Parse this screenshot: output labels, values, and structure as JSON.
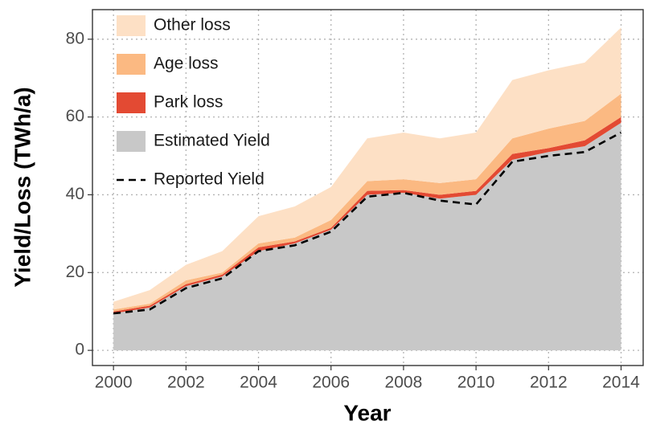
{
  "chart_data": {
    "type": "stacked-area",
    "x_label": "Year",
    "y_label": "Yield/Loss (TWh/a)",
    "x": [
      2000,
      2001,
      2002,
      2003,
      2004,
      2005,
      2006,
      2007,
      2008,
      2009,
      2010,
      2011,
      2012,
      2013,
      2014
    ],
    "series": [
      {
        "name": "Estimated Yield",
        "color": "#c8c8c8",
        "values": [
          9.5,
          11,
          16.5,
          19,
          25.5,
          27.5,
          31,
          40,
          40.5,
          39,
          40,
          49,
          51,
          52.5,
          58.5
        ]
      },
      {
        "name": "Park loss",
        "color": "#e34a33",
        "values": [
          0.5,
          0.5,
          0.5,
          0.5,
          1,
          0.5,
          0.5,
          1,
          0.7,
          1,
          1,
          1.5,
          1,
          1.5,
          1.5
        ]
      },
      {
        "name": "Age loss",
        "color": "#fbb982",
        "values": [
          0.5,
          0.5,
          1,
          0.5,
          1,
          1,
          2,
          2.5,
          2.8,
          3,
          3,
          4,
          5,
          5,
          6
        ]
      },
      {
        "name": "Other loss",
        "color": "#fde0c5",
        "values": [
          2,
          3.5,
          4,
          5.5,
          7,
          8,
          8.5,
          11,
          12,
          11.5,
          12,
          15,
          15,
          15,
          17
        ]
      }
    ],
    "lines": [
      {
        "name": "Reported Yield",
        "color": "#000000",
        "dashed": true,
        "values": [
          9.5,
          10.5,
          16,
          18.5,
          25.5,
          27,
          30.5,
          39.5,
          40.5,
          38.5,
          37.5,
          48.5,
          50,
          51,
          56
        ]
      }
    ],
    "xlim": [
      1999.42,
      2014.61
    ],
    "ylim": [
      -3.9,
      87.6
    ],
    "xticks": [
      2000,
      2002,
      2004,
      2006,
      2008,
      2010,
      2012,
      2014
    ],
    "yticks": [
      0,
      20,
      40,
      60,
      80
    ],
    "grid": true,
    "legend": "top-left"
  }
}
